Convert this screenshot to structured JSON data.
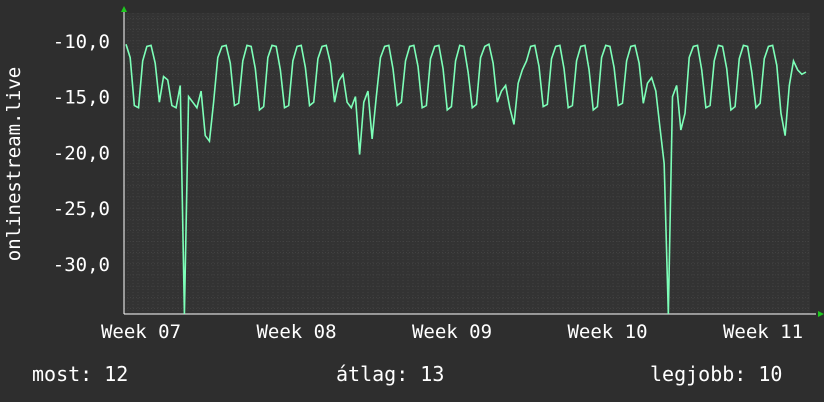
{
  "chart_data": {
    "type": "line",
    "ylabel": "onlinestream.live",
    "x_ticks": [
      "Week 07",
      "Week 08",
      "Week 09",
      "Week 10",
      "Week 11"
    ],
    "y_ticks": [
      "-10,0",
      "-15,0",
      "-20,0",
      "-25,0",
      "-30,0"
    ],
    "ylim": [
      -34.5,
      -7.5
    ],
    "grid": true,
    "line_color": "#7dffb8",
    "grid_color": "#4a4a4a",
    "series": [
      {
        "values": [
          -10.3,
          -11.5,
          -15.8,
          -16.0,
          -11.8,
          -10.5,
          -10.4,
          -12.0,
          -15.5,
          -13.2,
          -13.5,
          -15.8,
          -16.0,
          -14.0,
          -35.0,
          -15.0,
          -15.5,
          -16.0,
          -14.5,
          -18.5,
          -19.0,
          -15.5,
          -11.5,
          -10.5,
          -10.4,
          -12.0,
          -15.8,
          -15.6,
          -11.8,
          -10.4,
          -10.5,
          -12.5,
          -16.2,
          -15.9,
          -11.5,
          -10.4,
          -10.5,
          -12.6,
          -16.0,
          -15.8,
          -11.8,
          -10.5,
          -10.4,
          -12.4,
          -15.8,
          -15.5,
          -11.6,
          -10.5,
          -10.4,
          -12.0,
          -15.5,
          -13.6,
          -13.0,
          -15.5,
          -16.0,
          -15.0,
          -20.2,
          -15.5,
          -14.5,
          -18.8,
          -15.0,
          -11.5,
          -10.5,
          -10.4,
          -12.5,
          -15.8,
          -15.5,
          -11.8,
          -10.5,
          -10.4,
          -12.3,
          -16.0,
          -15.8,
          -11.6,
          -10.5,
          -10.4,
          -12.5,
          -16.2,
          -15.9,
          -11.8,
          -10.4,
          -10.5,
          -12.8,
          -16.0,
          -15.7,
          -11.5,
          -10.5,
          -10.3,
          -12.0,
          -15.5,
          -14.5,
          -14.0,
          -16.0,
          -17.5,
          -13.8,
          -12.6,
          -11.8,
          -10.5,
          -10.4,
          -12.3,
          -15.9,
          -15.7,
          -11.6,
          -10.5,
          -10.4,
          -12.5,
          -16.0,
          -15.8,
          -11.8,
          -10.5,
          -10.4,
          -12.6,
          -16.2,
          -15.9,
          -11.5,
          -10.4,
          -10.5,
          -12.4,
          -15.8,
          -15.6,
          -11.8,
          -10.5,
          -10.4,
          -12.0,
          -15.6,
          -13.8,
          -13.3,
          -14.5,
          -17.8,
          -21.0,
          -34.8,
          -15.0,
          -14.0,
          -18.0,
          -16.5,
          -11.5,
          -10.5,
          -10.4,
          -12.6,
          -16.0,
          -15.8,
          -11.8,
          -10.4,
          -10.5,
          -12.5,
          -16.2,
          -15.9,
          -11.6,
          -10.4,
          -10.5,
          -12.8,
          -16.0,
          -15.6,
          -11.6,
          -10.5,
          -10.4,
          -12.2,
          -16.5,
          -18.5,
          -14.0,
          -11.8,
          -12.6,
          -13.0,
          -12.8
        ]
      }
    ]
  },
  "footer": {
    "current": "most: 12",
    "average": "átlag: 13",
    "best": "legjobb: 10"
  }
}
